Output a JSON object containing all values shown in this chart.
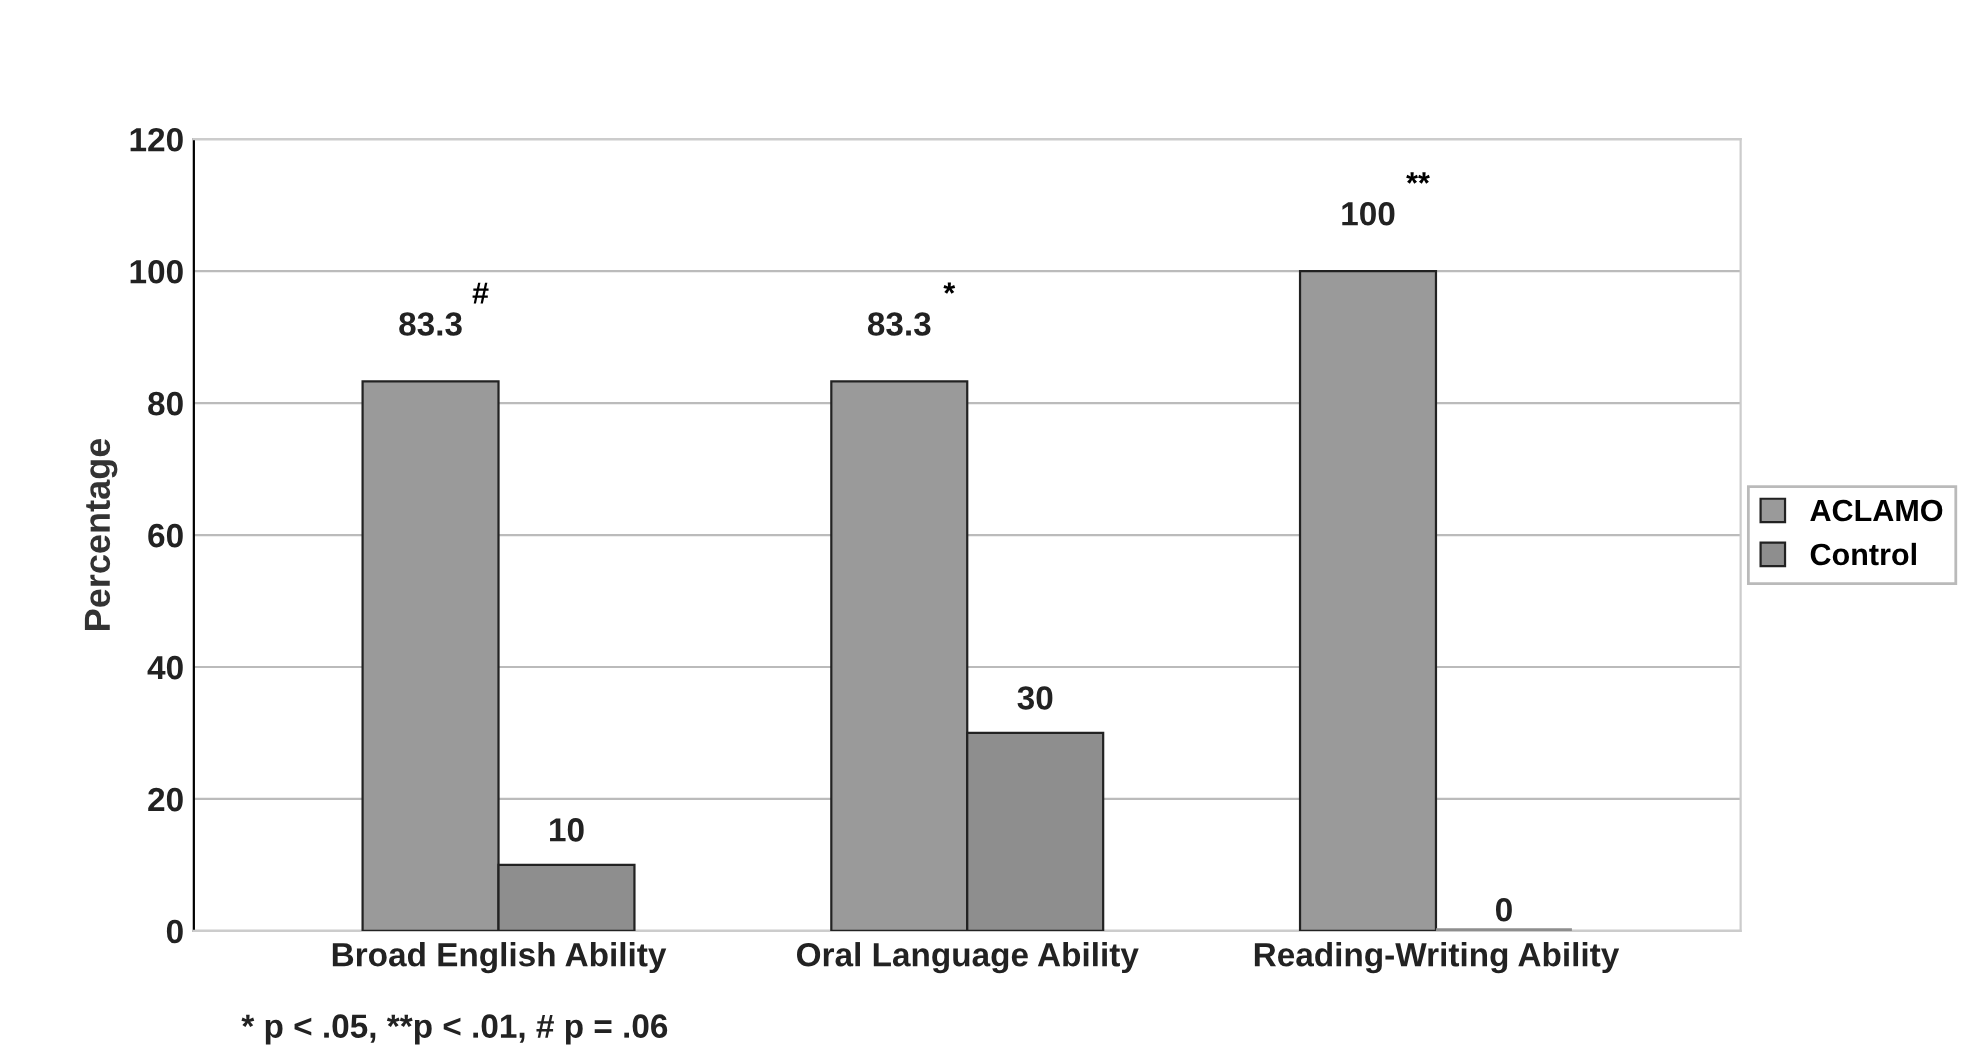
{
  "chart_data": {
    "type": "bar",
    "ylabel": "Percentage",
    "categories": [
      "Broad English Ability",
      "Oral Language Ability",
      "Reading-Writing Ability"
    ],
    "series": [
      {
        "name": "ACLAMO",
        "color": "#9a9a9a",
        "values": [
          83.3,
          83.3,
          100
        ]
      },
      {
        "name": "Control",
        "color": "#8e8e8e",
        "values": [
          10,
          30,
          0
        ]
      }
    ],
    "ylim": [
      0,
      120
    ],
    "yticks": [
      0,
      20,
      40,
      60,
      80,
      100,
      120
    ],
    "grid": "y",
    "legend": "right",
    "data_labels": true,
    "annotations": [
      "#",
      "*",
      "**",
      "* p < .05, **p < .01, # p = .06"
    ]
  }
}
